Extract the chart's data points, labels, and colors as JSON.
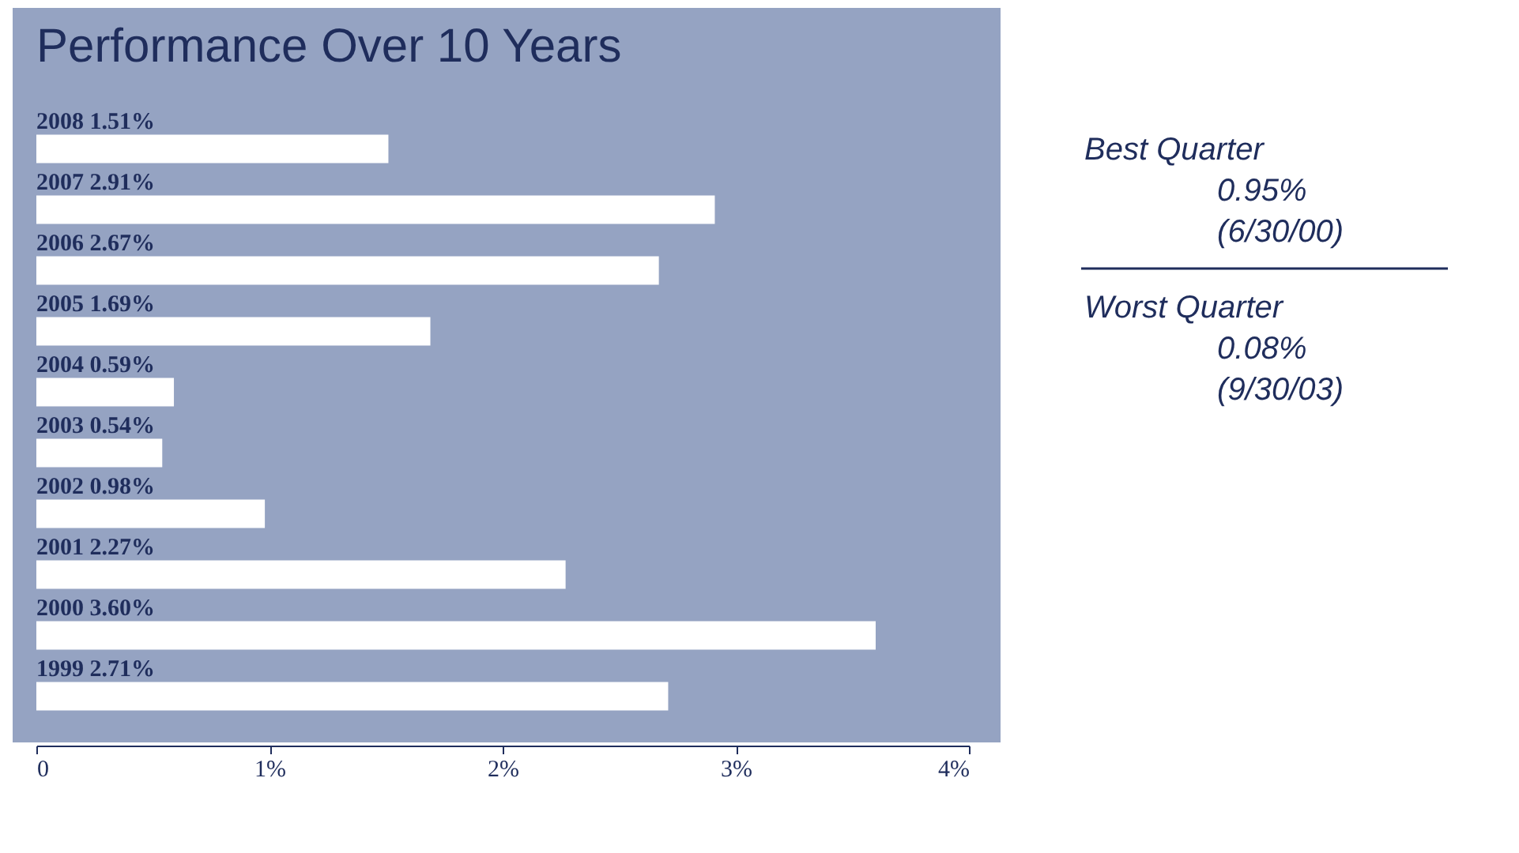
{
  "chart_data": {
    "type": "bar",
    "orientation": "horizontal",
    "title": "Performance Over 10 Years",
    "categories": [
      "2008",
      "2007",
      "2006",
      "2005",
      "2004",
      "2003",
      "2002",
      "2001",
      "2000",
      "1999"
    ],
    "values": [
      1.51,
      2.91,
      2.67,
      1.69,
      0.59,
      0.54,
      0.98,
      2.27,
      3.6,
      2.71
    ],
    "value_labels": [
      "1.51%",
      "2.91%",
      "2.67%",
      "1.69%",
      "0.59%",
      "0.54%",
      "0.98%",
      "2.27%",
      "3.60%",
      "2.71%"
    ],
    "color": "#ffffff",
    "xlim": [
      0,
      4
    ],
    "xticks": [
      0,
      {
        "value": 1,
        "label": "1%"
      },
      {
        "value": 2,
        "label": "2%"
      },
      {
        "value": 3,
        "label": "3%"
      },
      {
        "value": 4,
        "label": "4%"
      }
    ],
    "tick_labels": "x",
    "annotations": [
      "Best Quarter",
      "0.95%",
      "(6/30/00)",
      "Worst Quarter",
      "0.08%",
      "(9/30/03)"
    ]
  }
}
